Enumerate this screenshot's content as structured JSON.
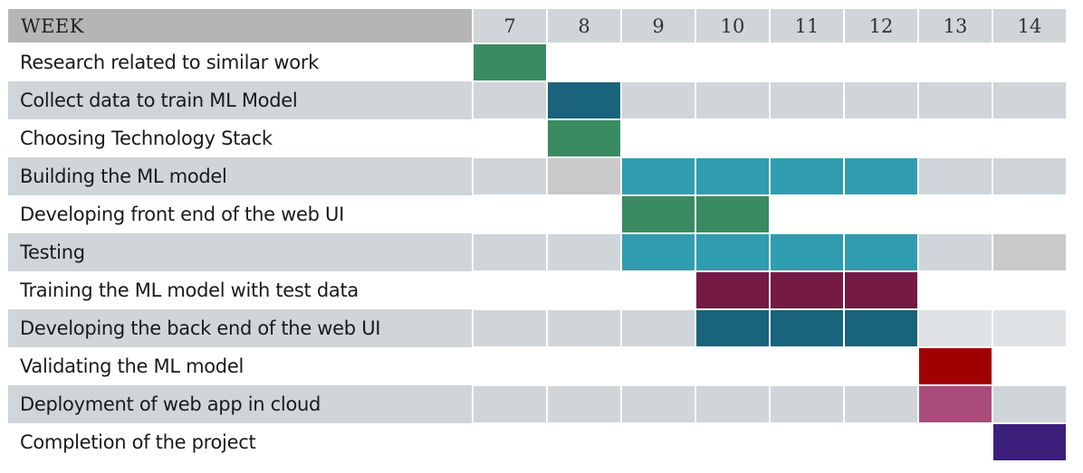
{
  "header": {
    "label": "WEEK",
    "weeks": [
      "7",
      "8",
      "9",
      "10",
      "11",
      "12",
      "13",
      "14"
    ]
  },
  "colors": {
    "green": "#3a8a62",
    "darkblue": "#19637c",
    "teal": "#2f9daf",
    "gray": "#c9c9c9",
    "lightgray": "#e0e3e6",
    "maroon": "#751a45",
    "red": "#a00000",
    "pink": "#a84c7a",
    "purple": "#3c1f7b"
  },
  "tasks": [
    {
      "name": "Research related to similar work",
      "cells": {
        "7": "green"
      }
    },
    {
      "name": "Collect data to train ML Model",
      "cells": {
        "8": "darkblue"
      }
    },
    {
      "name": "Choosing Technology Stack",
      "cells": {
        "8": "green"
      }
    },
    {
      "name": "Building the ML model",
      "cells": {
        "8": "gray",
        "9": "teal",
        "10": "teal",
        "11": "teal",
        "12": "teal"
      }
    },
    {
      "name": "Developing front end of the web UI",
      "cells": {
        "9": "green",
        "10": "green"
      }
    },
    {
      "name": "Testing",
      "cells": {
        "9": "teal",
        "10": "teal",
        "11": "teal",
        "12": "teal",
        "14": "gray"
      }
    },
    {
      "name": "Training the ML model with test data",
      "cells": {
        "10": "maroon",
        "11": "maroon",
        "12": "maroon"
      }
    },
    {
      "name": "Developing the back end of the web UI",
      "cells": {
        "10": "darkblue",
        "11": "darkblue",
        "12": "darkblue",
        "13": "lightgray",
        "14": "lightgray"
      }
    },
    {
      "name": "Validating the ML model",
      "cells": {
        "13": "red"
      }
    },
    {
      "name": "Deployment of web app in cloud",
      "cells": {
        "13": "pink"
      }
    },
    {
      "name": "Completion of the project",
      "cells": {
        "14": "purple"
      }
    }
  ]
}
